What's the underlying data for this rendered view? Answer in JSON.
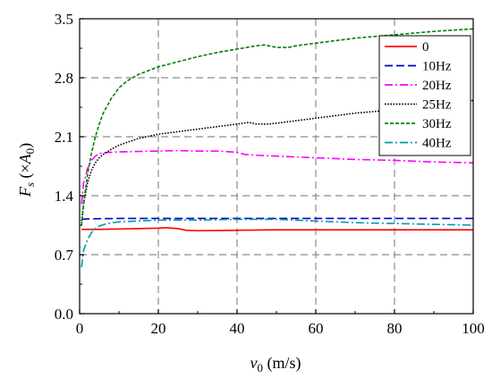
{
  "chart_data": {
    "type": "line",
    "title": "",
    "xlabel": {
      "main": "v",
      "sub": "0",
      "unit": " (m/s)"
    },
    "ylabel": {
      "main": "F",
      "sub": "s",
      "paren_open": " (×",
      "amp": "A",
      "amp_sub": "0",
      "paren_close": ")"
    },
    "xlim": [
      0,
      100
    ],
    "ylim": [
      0,
      3.5
    ],
    "x_ticks": [
      0,
      20,
      40,
      60,
      80,
      100
    ],
    "x_tick_labels": [
      "0",
      "20",
      "40",
      "60",
      "80",
      "100"
    ],
    "y_ticks": [
      0.0,
      0.7,
      1.4,
      2.1,
      2.8,
      3.5
    ],
    "y_tick_labels": [
      "0.0",
      "0.7",
      "1.4",
      "2.1",
      "2.8",
      "3.5"
    ],
    "grid": true,
    "grid_style": "dashed",
    "legend_position": "top-right",
    "series": [
      {
        "name": "0",
        "color": "#ff0000",
        "dash": "solid",
        "points": [
          [
            0.5,
            1.0
          ],
          [
            1,
            1.0
          ],
          [
            5,
            1.0
          ],
          [
            10,
            1.005
          ],
          [
            15,
            1.01
          ],
          [
            20,
            1.015
          ],
          [
            22,
            1.02
          ],
          [
            25,
            1.01
          ],
          [
            27,
            0.99
          ],
          [
            30,
            0.985
          ],
          [
            40,
            0.99
          ],
          [
            50,
            0.995
          ],
          [
            60,
            0.995
          ],
          [
            70,
            0.995
          ],
          [
            80,
            0.995
          ],
          [
            90,
            0.995
          ],
          [
            100,
            0.995
          ]
        ]
      },
      {
        "name": "10Hz",
        "color": "#0000cc",
        "dash": "long-dash",
        "points": [
          [
            0.5,
            1.12
          ],
          [
            2,
            1.125
          ],
          [
            10,
            1.13
          ],
          [
            20,
            1.13
          ],
          [
            30,
            1.13
          ],
          [
            40,
            1.13
          ],
          [
            50,
            1.13
          ],
          [
            60,
            1.13
          ],
          [
            70,
            1.13
          ],
          [
            80,
            1.13
          ],
          [
            90,
            1.13
          ],
          [
            100,
            1.13
          ]
        ]
      },
      {
        "name": "20Hz",
        "color": "#ff00ff",
        "dash": "dash-dot",
        "points": [
          [
            0.5,
            1.3
          ],
          [
            1,
            1.55
          ],
          [
            2,
            1.72
          ],
          [
            3,
            1.82
          ],
          [
            4,
            1.87
          ],
          [
            5,
            1.9
          ],
          [
            6,
            1.91
          ],
          [
            8,
            1.915
          ],
          [
            10,
            1.92
          ],
          [
            15,
            1.925
          ],
          [
            20,
            1.93
          ],
          [
            25,
            1.935
          ],
          [
            30,
            1.93
          ],
          [
            35,
            1.93
          ],
          [
            40,
            1.915
          ],
          [
            42,
            1.89
          ],
          [
            45,
            1.88
          ],
          [
            50,
            1.87
          ],
          [
            60,
            1.85
          ],
          [
            70,
            1.83
          ],
          [
            80,
            1.82
          ],
          [
            90,
            1.8
          ],
          [
            100,
            1.79
          ]
        ]
      },
      {
        "name": "25Hz",
        "color": "#000000",
        "dash": "dotted",
        "points": [
          [
            0.5,
            1.1
          ],
          [
            1,
            1.3
          ],
          [
            2,
            1.55
          ],
          [
            3,
            1.7
          ],
          [
            4,
            1.79
          ],
          [
            5,
            1.85
          ],
          [
            6,
            1.89
          ],
          [
            8,
            1.95
          ],
          [
            10,
            2.0
          ],
          [
            15,
            2.08
          ],
          [
            20,
            2.13
          ],
          [
            25,
            2.16
          ],
          [
            30,
            2.19
          ],
          [
            35,
            2.22
          ],
          [
            40,
            2.25
          ],
          [
            43,
            2.27
          ],
          [
            45,
            2.25
          ],
          [
            48,
            2.25
          ],
          [
            50,
            2.26
          ],
          [
            60,
            2.32
          ],
          [
            70,
            2.38
          ],
          [
            80,
            2.42
          ],
          [
            90,
            2.47
          ],
          [
            100,
            2.53
          ]
        ]
      },
      {
        "name": "30Hz",
        "color": "#008000",
        "dash": "short-dash",
        "points": [
          [
            0.5,
            1.05
          ],
          [
            1,
            1.3
          ],
          [
            2,
            1.65
          ],
          [
            3,
            1.9
          ],
          [
            4,
            2.1
          ],
          [
            5,
            2.25
          ],
          [
            6,
            2.38
          ],
          [
            8,
            2.55
          ],
          [
            10,
            2.68
          ],
          [
            12,
            2.76
          ],
          [
            15,
            2.84
          ],
          [
            20,
            2.93
          ],
          [
            25,
            2.99
          ],
          [
            30,
            3.05
          ],
          [
            35,
            3.1
          ],
          [
            40,
            3.14
          ],
          [
            45,
            3.18
          ],
          [
            47,
            3.19
          ],
          [
            50,
            3.16
          ],
          [
            53,
            3.16
          ],
          [
            55,
            3.18
          ],
          [
            60,
            3.21
          ],
          [
            70,
            3.27
          ],
          [
            80,
            3.31
          ],
          [
            90,
            3.35
          ],
          [
            100,
            3.38
          ]
        ]
      },
      {
        "name": "40Hz",
        "color": "#0099aa",
        "dash": "dash-dot",
        "points": [
          [
            0.5,
            0.55
          ],
          [
            1,
            0.75
          ],
          [
            2,
            0.88
          ],
          [
            3,
            0.96
          ],
          [
            4,
            1.01
          ],
          [
            5,
            1.04
          ],
          [
            7,
            1.07
          ],
          [
            10,
            1.09
          ],
          [
            15,
            1.1
          ],
          [
            20,
            1.11
          ],
          [
            30,
            1.11
          ],
          [
            40,
            1.12
          ],
          [
            50,
            1.12
          ],
          [
            60,
            1.1
          ],
          [
            70,
            1.08
          ],
          [
            80,
            1.07
          ],
          [
            90,
            1.06
          ],
          [
            100,
            1.05
          ]
        ]
      }
    ]
  }
}
